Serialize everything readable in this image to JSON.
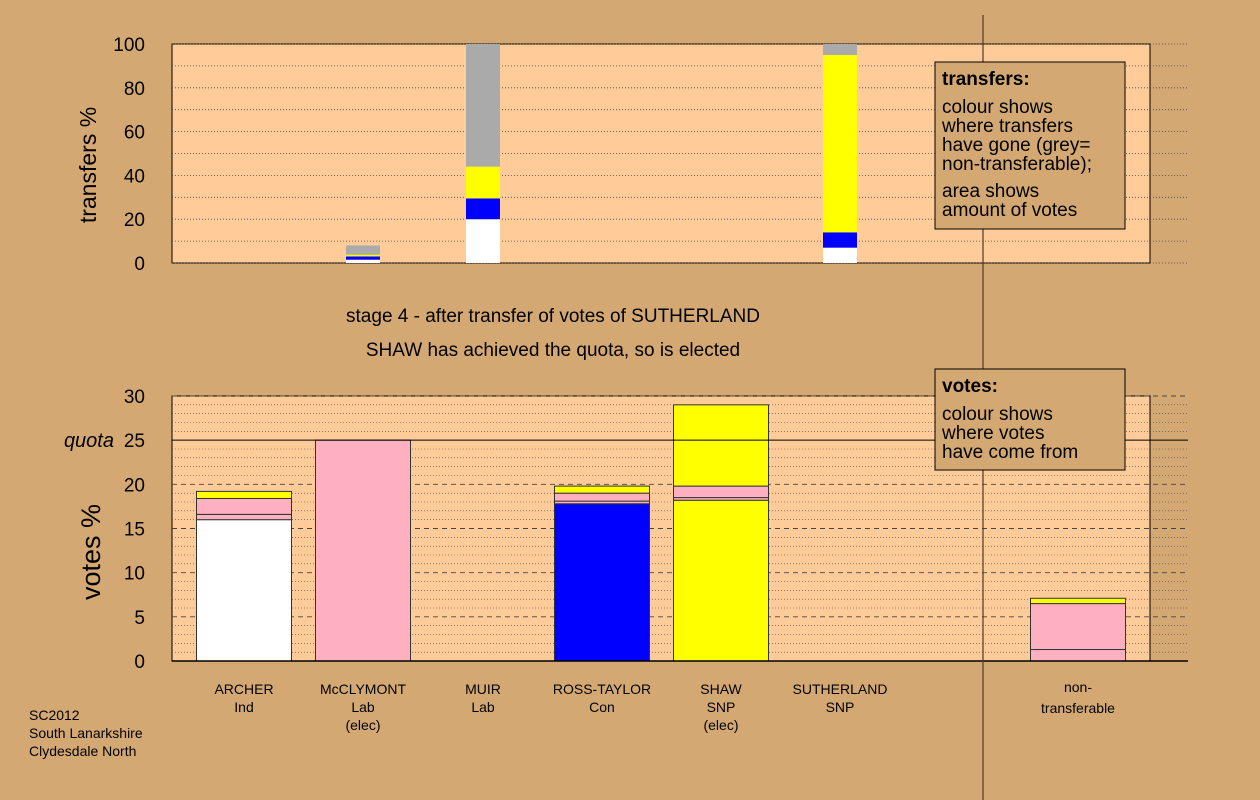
{
  "colors": {
    "background": "#d4a873",
    "plot_background": "#ffcc99",
    "legend_background": "#d4a873",
    "Ind": "#ffffff",
    "Lab": "#ffb0c0",
    "Con": "#0000ff",
    "SNP": "#ffff00",
    "nontransferable": "#aaaaaa"
  },
  "stage_text": {
    "line1": "stage 4 - after transfer of votes of SUTHERLAND",
    "line2": "SHAW has achieved the quota, so is elected"
  },
  "footer": {
    "line1": "SC2012",
    "line2": "South Lanarkshire",
    "line3": "Clydesdale North"
  },
  "candidates": [
    {
      "name": "ARCHER",
      "party": "Ind",
      "status": ""
    },
    {
      "name": "McCLYMONT",
      "party": "Lab",
      "status": "(elec)"
    },
    {
      "name": "MUIR",
      "party": "Lab",
      "status": ""
    },
    {
      "name": "ROSS-TAYLOR",
      "party": "Con",
      "status": ""
    },
    {
      "name": "SHAW",
      "party": "SNP",
      "status": "(elec)"
    },
    {
      "name": "SUTHERLAND",
      "party": "SNP",
      "status": ""
    }
  ],
  "nontransferable_label": {
    "line1": "non-",
    "line2": "transferable"
  },
  "chart_data": [
    {
      "type": "bar",
      "stacked": true,
      "ylabel": "transfers %",
      "ylim": [
        0,
        100
      ],
      "yticks": [
        0,
        20,
        40,
        60,
        80,
        100
      ],
      "legend": {
        "title": "transfers:",
        "line1": "colour shows",
        "line2": "where transfers",
        "line3": "have gone (grey=",
        "line4": "non-transferable);",
        "line5": "area shows",
        "line6": "amount of votes"
      },
      "bars": [
        {
          "candidate": "McCLYMONT",
          "segments": [
            {
              "party": "Ind",
              "value": 1.5
            },
            {
              "party": "Con",
              "value": 1.5
            },
            {
              "party": "SNP",
              "value": 0.8
            },
            {
              "party": "nontransferable",
              "value": 4.2
            }
          ]
        },
        {
          "candidate": "MUIR",
          "segments": [
            {
              "party": "Ind",
              "value": 20
            },
            {
              "party": "Con",
              "value": 9.5
            },
            {
              "party": "SNP",
              "value": 14.5
            },
            {
              "party": "nontransferable",
              "value": 56
            }
          ]
        },
        {
          "candidate": "SUTHERLAND",
          "segments": [
            {
              "party": "Ind",
              "value": 7
            },
            {
              "party": "Con",
              "value": 7
            },
            {
              "party": "SNP",
              "value": 81
            },
            {
              "party": "nontransferable",
              "value": 5
            }
          ]
        }
      ]
    },
    {
      "type": "bar",
      "stacked": true,
      "ylabel": "votes %",
      "ylim": [
        0,
        30
      ],
      "yticks": [
        0,
        5,
        10,
        15,
        20,
        25,
        30
      ],
      "quota": 25,
      "quota_label": "quota",
      "legend": {
        "title": "votes:",
        "line1": "colour shows",
        "line2": "where votes",
        "line3": "have come from"
      },
      "bars": [
        {
          "candidate": "ARCHER",
          "segments": [
            {
              "party": "Ind",
              "value": 16.0
            },
            {
              "party": "Lab",
              "value": 0.6
            },
            {
              "party": "Lab",
              "value": 1.8
            },
            {
              "party": "SNP",
              "value": 0.8
            }
          ]
        },
        {
          "candidate": "McCLYMONT",
          "segments": [
            {
              "party": "Lab",
              "value": 25.0
            }
          ]
        },
        {
          "candidate": "MUIR",
          "segments": []
        },
        {
          "candidate": "ROSS-TAYLOR",
          "segments": [
            {
              "party": "Con",
              "value": 17.8
            },
            {
              "party": "Lab",
              "value": 0.3
            },
            {
              "party": "Lab",
              "value": 0.9
            },
            {
              "party": "SNP",
              "value": 0.8
            }
          ]
        },
        {
          "candidate": "SHAW",
          "segments": [
            {
              "party": "SNP",
              "value": 18.2
            },
            {
              "party": "Lab",
              "value": 0.3
            },
            {
              "party": "Lab",
              "value": 1.3
            },
            {
              "party": "SNP",
              "value": 9.2
            }
          ]
        },
        {
          "candidate": "SUTHERLAND",
          "segments": []
        },
        {
          "candidate": "non-transferable",
          "segments": [
            {
              "party": "Lab",
              "value": 1.3
            },
            {
              "party": "Lab",
              "value": 5.2
            },
            {
              "party": "SNP",
              "value": 0.6
            }
          ]
        }
      ]
    }
  ]
}
